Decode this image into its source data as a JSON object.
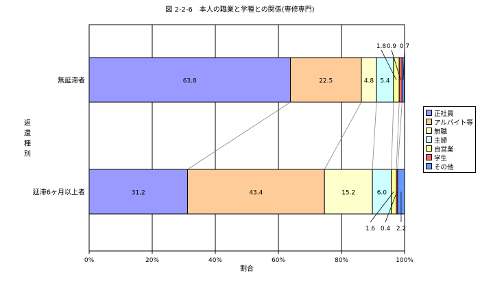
{
  "chart_data": {
    "type": "bar",
    "orientation": "horizontal",
    "stacked": true,
    "title": "図 2-2-6　本人の職業と学種との関係(専修専門)",
    "xlabel": "割合",
    "ylabel": "返還種別",
    "xlim": [
      0,
      100
    ],
    "xticks": [
      "0%",
      "20%",
      "40%",
      "60%",
      "80%",
      "100%"
    ],
    "grid": true,
    "legend_position": "right",
    "categories": [
      "無延滞者",
      "延滞6ヶ月以上者"
    ],
    "series": [
      {
        "name": "正社員",
        "color": "#9999ff",
        "values": [
          63.8,
          31.2
        ]
      },
      {
        "name": "アルバイト等",
        "color": "#ffcc99",
        "values": [
          22.5,
          43.4
        ]
      },
      {
        "name": "無職",
        "color": "#ffffcc",
        "values": [
          4.8,
          15.2
        ]
      },
      {
        "name": "主婦",
        "color": "#ccffff",
        "values": [
          5.4,
          6.0
        ]
      },
      {
        "name": "自営業",
        "color": "#ffff99",
        "values": [
          1.8,
          1.6
        ]
      },
      {
        "name": "学生",
        "color": "#ff6666",
        "values": [
          0.9,
          0.4
        ]
      },
      {
        "name": "その他",
        "color": "#6699ff",
        "values": [
          0.7,
          2.2
        ]
      }
    ],
    "value_labels": [
      [
        "63.8",
        "22.5",
        "4.8",
        "5.4",
        "1.8",
        "0.9",
        "0.7"
      ],
      [
        "31.2",
        "43.4",
        "15.2",
        "6.0",
        "1.6",
        "0.4",
        "2.2"
      ]
    ]
  }
}
